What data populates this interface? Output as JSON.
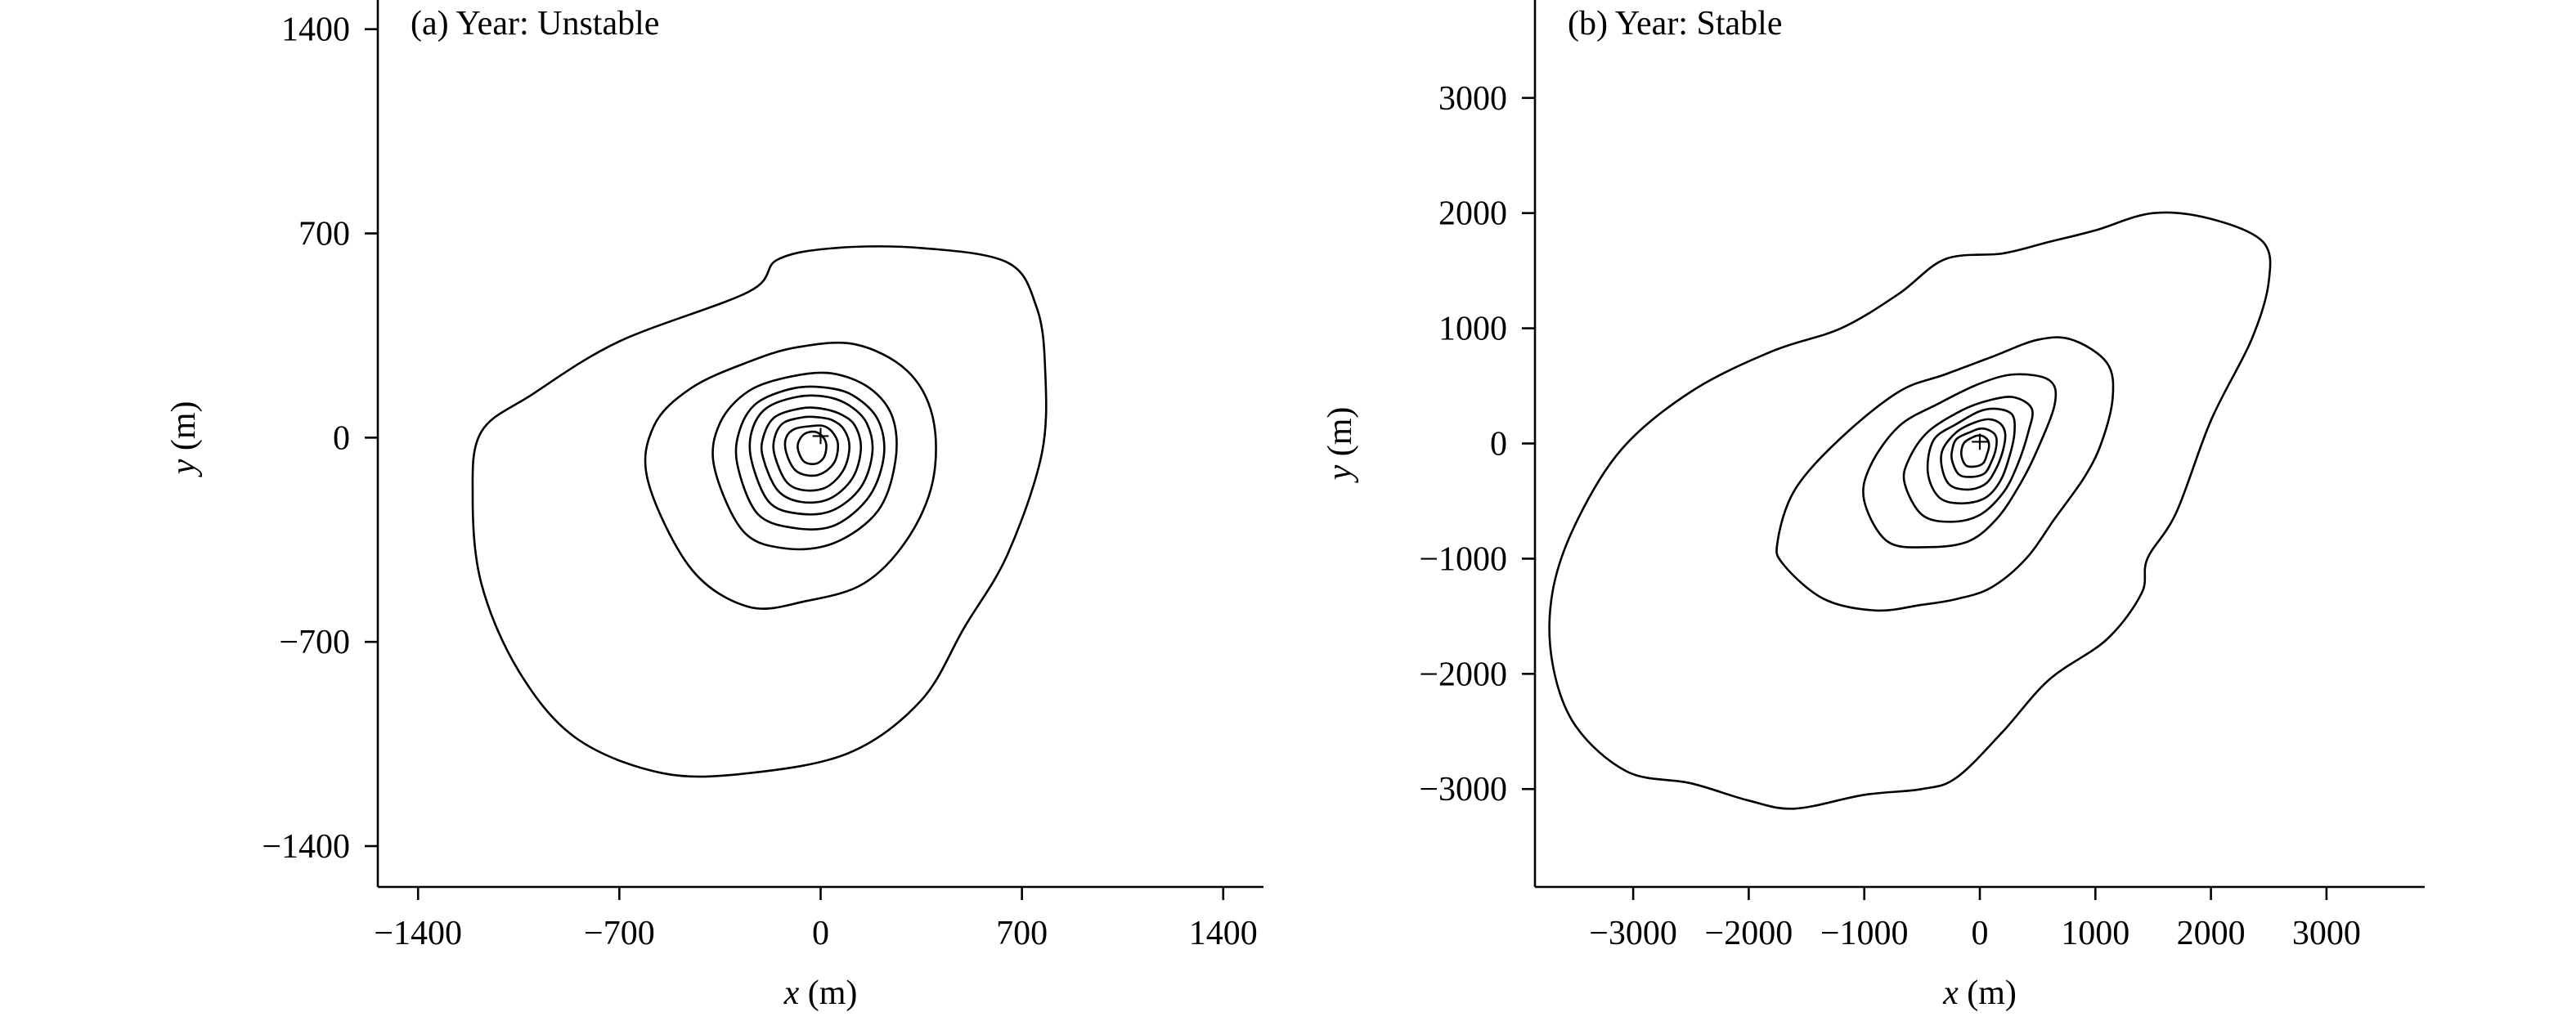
{
  "chart_data": [
    {
      "type": "contour",
      "title": "(a) Year: Unstable",
      "xlabel_var": "x",
      "xlabel_unit": " (m)",
      "ylabel_var": "y",
      "ylabel_unit": " (m)",
      "xlim": [
        -1540,
        1540
      ],
      "ylim": [
        -1540,
        1500
      ],
      "xticks": [
        -1400,
        -700,
        0,
        700,
        1400
      ],
      "xtick_labels": [
        "−1400",
        "−700",
        "0",
        "700",
        "1400"
      ],
      "yticks": [
        -1400,
        -700,
        0,
        700,
        1400
      ],
      "ytick_labels": [
        "−1400",
        "−700",
        "0",
        "700",
        "1400"
      ],
      "source_marker": "+",
      "source": [
        0,
        0
      ],
      "contours": [
        [
          [
            -1210,
            -200
          ],
          [
            -1180,
            -500
          ],
          [
            -1050,
            -800
          ],
          [
            -850,
            -1030
          ],
          [
            -550,
            -1150
          ],
          [
            -250,
            -1150
          ],
          [
            100,
            -1080
          ],
          [
            350,
            -900
          ],
          [
            500,
            -650
          ],
          [
            650,
            -400
          ],
          [
            770,
            -50
          ],
          [
            780,
            250
          ],
          [
            750,
            450
          ],
          [
            650,
            600
          ],
          [
            350,
            650
          ],
          [
            50,
            650
          ],
          [
            -150,
            610
          ],
          [
            -250,
            500
          ],
          [
            -700,
            330
          ],
          [
            -1000,
            150
          ],
          [
            -1180,
            20
          ]
        ],
        [
          [
            -600,
            -150
          ],
          [
            -450,
            -450
          ],
          [
            -250,
            -580
          ],
          [
            -50,
            -560
          ],
          [
            150,
            -500
          ],
          [
            300,
            -350
          ],
          [
            390,
            -150
          ],
          [
            390,
            70
          ],
          [
            300,
            230
          ],
          [
            120,
            320
          ],
          [
            -80,
            310
          ],
          [
            -250,
            260
          ],
          [
            -450,
            170
          ],
          [
            -580,
            40
          ]
        ],
        [
          [
            -370,
            -100
          ],
          [
            -270,
            -320
          ],
          [
            -120,
            -380
          ],
          [
            50,
            -360
          ],
          [
            200,
            -250
          ],
          [
            260,
            -80
          ],
          [
            250,
            70
          ],
          [
            170,
            170
          ],
          [
            40,
            220
          ],
          [
            -100,
            210
          ],
          [
            -250,
            160
          ],
          [
            -350,
            50
          ]
        ],
        [
          [
            -290,
            -90
          ],
          [
            -220,
            -260
          ],
          [
            -90,
            -310
          ],
          [
            50,
            -300
          ],
          [
            170,
            -200
          ],
          [
            220,
            -60
          ],
          [
            200,
            60
          ],
          [
            120,
            140
          ],
          [
            30,
            170
          ],
          [
            -90,
            170
          ],
          [
            -220,
            120
          ],
          [
            -280,
            30
          ]
        ],
        [
          [
            -240,
            -80
          ],
          [
            -180,
            -220
          ],
          [
            -80,
            -260
          ],
          [
            40,
            -250
          ],
          [
            140,
            -170
          ],
          [
            180,
            -50
          ],
          [
            160,
            50
          ],
          [
            100,
            110
          ],
          [
            20,
            140
          ],
          [
            -80,
            140
          ],
          [
            -190,
            100
          ],
          [
            -240,
            20
          ]
        ],
        [
          [
            -200,
            -70
          ],
          [
            -150,
            -180
          ],
          [
            -70,
            -220
          ],
          [
            30,
            -210
          ],
          [
            110,
            -140
          ],
          [
            140,
            -40
          ],
          [
            120,
            40
          ],
          [
            70,
            80
          ],
          [
            0,
            100
          ],
          [
            -70,
            100
          ],
          [
            -160,
            70
          ],
          [
            -200,
            0
          ]
        ],
        [
          [
            -160,
            -60
          ],
          [
            -120,
            -150
          ],
          [
            -60,
            -180
          ],
          [
            20,
            -170
          ],
          [
            80,
            -110
          ],
          [
            100,
            -30
          ],
          [
            80,
            30
          ],
          [
            40,
            60
          ],
          [
            -10,
            70
          ],
          [
            -60,
            70
          ],
          [
            -130,
            50
          ],
          [
            -160,
            0
          ]
        ],
        [
          [
            -120,
            -50
          ],
          [
            -90,
            -110
          ],
          [
            -40,
            -130
          ],
          [
            10,
            -120
          ],
          [
            50,
            -80
          ],
          [
            60,
            -20
          ],
          [
            40,
            20
          ],
          [
            10,
            40
          ],
          [
            -30,
            40
          ],
          [
            -90,
            30
          ],
          [
            -120,
            0
          ]
        ],
        [
          [
            -80,
            -30
          ],
          [
            -60,
            -80
          ],
          [
            -20,
            -90
          ],
          [
            10,
            -70
          ],
          [
            20,
            -30
          ],
          [
            10,
            0
          ],
          [
            -20,
            20
          ],
          [
            -60,
            10
          ]
        ]
      ]
    },
    {
      "type": "contour",
      "title": "(b) Year: Stable",
      "xlabel_var": "x",
      "xlabel_unit": " (m)",
      "ylabel_var": "y",
      "ylabel_unit": " (m)",
      "xlim": [
        -3850,
        3850
      ],
      "ylim": [
        -3850,
        3850
      ],
      "xticks": [
        -3000,
        -2000,
        -1000,
        0,
        1000,
        2000,
        3000
      ],
      "xtick_labels": [
        "−3000",
        "−2000",
        "−1000",
        "0",
        "1000",
        "2000",
        "3000"
      ],
      "yticks": [
        -3000,
        -2000,
        -1000,
        0,
        1000,
        2000,
        3000
      ],
      "ytick_labels": [
        "−3000",
        "−2000",
        "−1000",
        "0",
        "1000",
        "2000",
        "3000"
      ],
      "source_marker": "+",
      "source": [
        0,
        0
      ],
      "contours": [
        [
          [
            -3700,
            -1900
          ],
          [
            -3500,
            -2450
          ],
          [
            -3050,
            -2850
          ],
          [
            -2500,
            -2950
          ],
          [
            -2000,
            -3100
          ],
          [
            -1600,
            -3170
          ],
          [
            -1000,
            -3050
          ],
          [
            -500,
            -3000
          ],
          [
            -200,
            -2900
          ],
          [
            200,
            -2500
          ],
          [
            600,
            -2050
          ],
          [
            1100,
            -1700
          ],
          [
            1400,
            -1300
          ],
          [
            1450,
            -1000
          ],
          [
            1700,
            -600
          ],
          [
            2000,
            200
          ],
          [
            2350,
            900
          ],
          [
            2500,
            1400
          ],
          [
            2450,
            1750
          ],
          [
            2000,
            1950
          ],
          [
            1500,
            2000
          ],
          [
            1000,
            1850
          ],
          [
            600,
            1750
          ],
          [
            200,
            1650
          ],
          [
            -300,
            1600
          ],
          [
            -700,
            1300
          ],
          [
            -1200,
            1000
          ],
          [
            -1800,
            800
          ],
          [
            -2500,
            450
          ],
          [
            -3100,
            -50
          ],
          [
            -3500,
            -700
          ],
          [
            -3700,
            -1300
          ]
        ],
        [
          [
            -1750,
            -850
          ],
          [
            -1700,
            -1050
          ],
          [
            -1350,
            -1350
          ],
          [
            -900,
            -1450
          ],
          [
            -500,
            -1400
          ],
          [
            -200,
            -1350
          ],
          [
            100,
            -1250
          ],
          [
            400,
            -1000
          ],
          [
            650,
            -650
          ],
          [
            900,
            -300
          ],
          [
            1050,
            0
          ],
          [
            1150,
            400
          ],
          [
            1100,
            700
          ],
          [
            800,
            900
          ],
          [
            500,
            900
          ],
          [
            100,
            750
          ],
          [
            -300,
            600
          ],
          [
            -700,
            450
          ],
          [
            -1200,
            50
          ],
          [
            -1600,
            -400
          ]
        ],
        [
          [
            -1000,
            -500
          ],
          [
            -800,
            -850
          ],
          [
            -450,
            -900
          ],
          [
            -100,
            -850
          ],
          [
            150,
            -650
          ],
          [
            350,
            -350
          ],
          [
            500,
            -50
          ],
          [
            650,
            350
          ],
          [
            600,
            550
          ],
          [
            300,
            600
          ],
          [
            0,
            520
          ],
          [
            -350,
            350
          ],
          [
            -700,
            150
          ],
          [
            -950,
            -200
          ]
        ],
        [
          [
            -650,
            -350
          ],
          [
            -500,
            -620
          ],
          [
            -250,
            -680
          ],
          [
            0,
            -620
          ],
          [
            200,
            -430
          ],
          [
            320,
            -200
          ],
          [
            420,
            100
          ],
          [
            450,
            300
          ],
          [
            300,
            400
          ],
          [
            100,
            380
          ],
          [
            -150,
            290
          ],
          [
            -450,
            100
          ],
          [
            -620,
            -150
          ]
        ],
        [
          [
            -450,
            -250
          ],
          [
            -350,
            -470
          ],
          [
            -150,
            -520
          ],
          [
            50,
            -470
          ],
          [
            180,
            -320
          ],
          [
            260,
            -100
          ],
          [
            300,
            100
          ],
          [
            280,
            250
          ],
          [
            150,
            300
          ],
          [
            0,
            280
          ],
          [
            -200,
            170
          ],
          [
            -400,
            30
          ]
        ],
        [
          [
            -330,
            -200
          ],
          [
            -260,
            -360
          ],
          [
            -100,
            -400
          ],
          [
            50,
            -350
          ],
          [
            140,
            -220
          ],
          [
            200,
            -60
          ],
          [
            220,
            80
          ],
          [
            180,
            170
          ],
          [
            80,
            210
          ],
          [
            -50,
            180
          ],
          [
            -200,
            100
          ],
          [
            -320,
            -50
          ]
        ],
        [
          [
            -240,
            -150
          ],
          [
            -180,
            -270
          ],
          [
            -70,
            -290
          ],
          [
            40,
            -260
          ],
          [
            100,
            -160
          ],
          [
            140,
            -40
          ],
          [
            140,
            60
          ],
          [
            90,
            110
          ],
          [
            10,
            130
          ],
          [
            -80,
            100
          ],
          [
            -200,
            40
          ],
          [
            -240,
            -60
          ]
        ],
        [
          [
            -160,
            -100
          ],
          [
            -120,
            -190
          ],
          [
            -40,
            -200
          ],
          [
            30,
            -170
          ],
          [
            60,
            -100
          ],
          [
            80,
            -20
          ],
          [
            60,
            40
          ],
          [
            0,
            70
          ],
          [
            -70,
            50
          ],
          [
            -140,
            0
          ]
        ]
      ]
    }
  ]
}
